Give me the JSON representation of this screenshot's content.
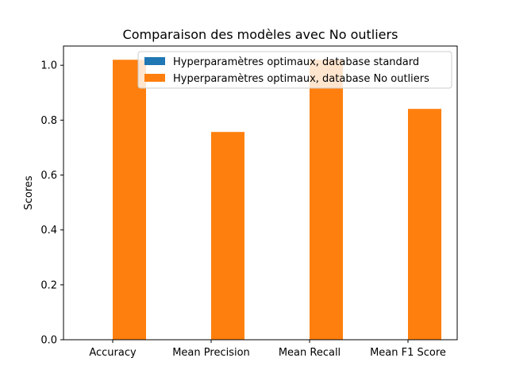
{
  "chart_data": {
    "type": "bar",
    "title": "Comparaison des modèles avec No outliers",
    "xlabel": "",
    "ylabel": "Scores",
    "categories": [
      "Accuracy",
      "Mean Precision",
      "Mean Recall",
      "Mean F1 Score"
    ],
    "series": [
      {
        "name": "Hyperparamètres optimaux, database standard",
        "color": "#1f77b4",
        "values": [
          0,
          0,
          0,
          0
        ]
      },
      {
        "name": "Hyperparamètres optimaux, database No outliers",
        "color": "#ff7f0e",
        "values": [
          1.02,
          0.757,
          1.02,
          0.841
        ]
      }
    ],
    "ylim": [
      0,
      1.07
    ],
    "yticks": [
      0.0,
      0.2,
      0.4,
      0.6,
      0.8,
      1.0
    ],
    "ytick_labels": [
      "0.0",
      "0.2",
      "0.4",
      "0.6",
      "0.8",
      "1.0"
    ],
    "grid": false,
    "legend_position": "top-right"
  }
}
